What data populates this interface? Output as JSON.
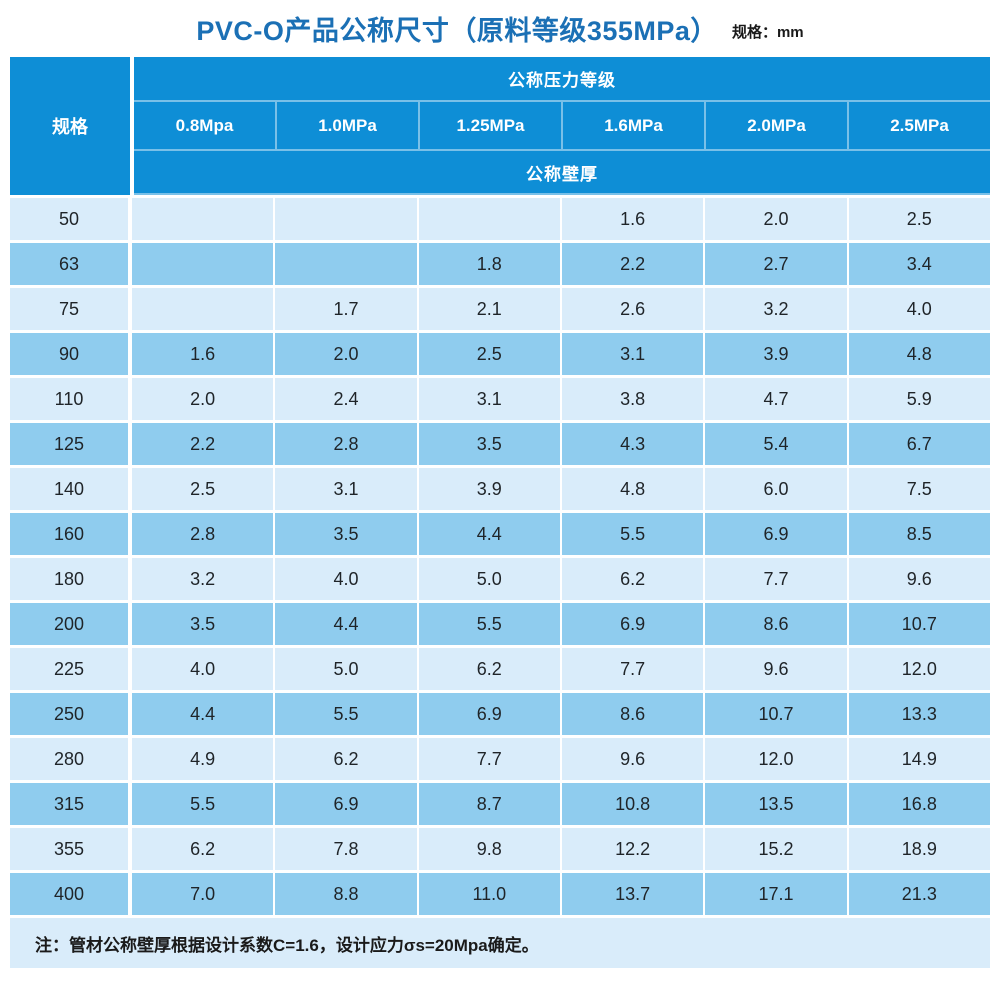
{
  "title": "PVC-O产品公称尺寸（原料等级355MPa）",
  "unit_label": "规格：mm",
  "colors": {
    "title_blue": "#1b70b5",
    "header_blue": "#0e8ed6",
    "row_light": "#d9ecfa",
    "row_dark": "#8fccee",
    "note_bg": "#d9ecfa"
  },
  "table": {
    "spec_header": "规格",
    "pressure_group_header": "公称压力等级",
    "pressure_levels": [
      "0.8Mpa",
      "1.0MPa",
      "1.25MPa",
      "1.6MPa",
      "2.0MPa",
      "2.5MPa"
    ],
    "thickness_header": "公称壁厚",
    "rows": [
      {
        "spec": "50",
        "values": [
          "",
          "",
          "",
          "1.6",
          "2.0",
          "2.5"
        ]
      },
      {
        "spec": "63",
        "values": [
          "",
          "",
          "1.8",
          "2.2",
          "2.7",
          "3.4"
        ]
      },
      {
        "spec": "75",
        "values": [
          "",
          "1.7",
          "2.1",
          "2.6",
          "3.2",
          "4.0"
        ]
      },
      {
        "spec": "90",
        "values": [
          "1.6",
          "2.0",
          "2.5",
          "3.1",
          "3.9",
          "4.8"
        ]
      },
      {
        "spec": "110",
        "values": [
          "2.0",
          "2.4",
          "3.1",
          "3.8",
          "4.7",
          "5.9"
        ]
      },
      {
        "spec": "125",
        "values": [
          "2.2",
          "2.8",
          "3.5",
          "4.3",
          "5.4",
          "6.7"
        ]
      },
      {
        "spec": "140",
        "values": [
          "2.5",
          "3.1",
          "3.9",
          "4.8",
          "6.0",
          "7.5"
        ]
      },
      {
        "spec": "160",
        "values": [
          "2.8",
          "3.5",
          "4.4",
          "5.5",
          "6.9",
          "8.5"
        ]
      },
      {
        "spec": "180",
        "values": [
          "3.2",
          "4.0",
          "5.0",
          "6.2",
          "7.7",
          "9.6"
        ]
      },
      {
        "spec": "200",
        "values": [
          "3.5",
          "4.4",
          "5.5",
          "6.9",
          "8.6",
          "10.7"
        ]
      },
      {
        "spec": "225",
        "values": [
          "4.0",
          "5.0",
          "6.2",
          "7.7",
          "9.6",
          "12.0"
        ]
      },
      {
        "spec": "250",
        "values": [
          "4.4",
          "5.5",
          "6.9",
          "8.6",
          "10.7",
          "13.3"
        ]
      },
      {
        "spec": "280",
        "values": [
          "4.9",
          "6.2",
          "7.7",
          "9.6",
          "12.0",
          "14.9"
        ]
      },
      {
        "spec": "315",
        "values": [
          "5.5",
          "6.9",
          "8.7",
          "10.8",
          "13.5",
          "16.8"
        ]
      },
      {
        "spec": "355",
        "values": [
          "6.2",
          "7.8",
          "9.8",
          "12.2",
          "15.2",
          "18.9"
        ]
      },
      {
        "spec": "400",
        "values": [
          "7.0",
          "8.8",
          "11.0",
          "13.7",
          "17.1",
          "21.3"
        ]
      }
    ]
  },
  "note": "注：管材公称壁厚根据设计系数C=1.6，设计应力σs=20Mpa确定。"
}
